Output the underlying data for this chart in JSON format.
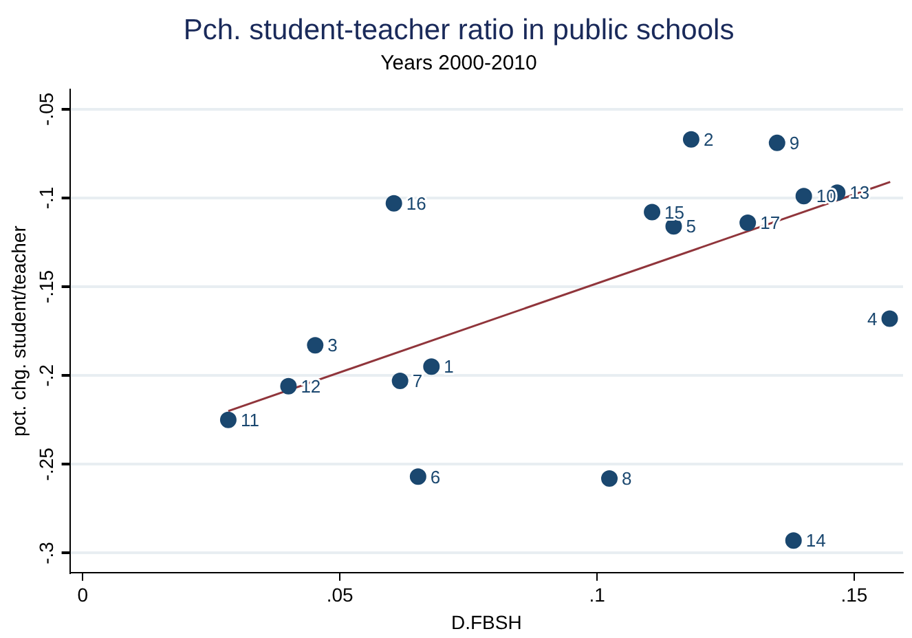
{
  "chart_data": {
    "type": "scatter",
    "title": "Pch. student-teacher ratio in public schools",
    "subtitle": "Years 2000-2010",
    "xlabel": "D.FBSH",
    "ylabel": "pct. chg. student/teacher",
    "xlim": [
      -0.0025,
      0.1595
    ],
    "xticks": [
      0,
      {
        "value": 0.05,
        "label": ".05"
      },
      {
        "value": 0.1,
        "label": ".1"
      },
      {
        "value": 0.15,
        "label": ".15"
      }
    ],
    "ylim": [
      -0.311,
      -0.039
    ],
    "yticks": [
      {
        "value": -0.3,
        "label": "-.3"
      },
      {
        "value": -0.25,
        "label": "-.25"
      },
      {
        "value": -0.2,
        "label": "-.2"
      },
      {
        "value": -0.15,
        "label": "-.15"
      },
      {
        "value": -0.1,
        "label": "-.1"
      },
      {
        "value": -0.05,
        "label": "-.05"
      }
    ],
    "grid": "y",
    "legend": false,
    "marker": "circle",
    "series": [
      {
        "color": "#1a476f",
        "x": [
          0.0678,
          0.1183,
          0.0452,
          0.1569,
          0.1149,
          0.0652,
          0.0617,
          0.1024,
          0.135,
          0.1402,
          0.0283,
          0.04,
          0.1467,
          0.1382,
          0.1107,
          0.0605,
          0.1293
        ],
        "values": [
          -0.195,
          -0.067,
          -0.183,
          -0.168,
          -0.116,
          -0.257,
          -0.203,
          -0.258,
          -0.069,
          -0.099,
          -0.225,
          -0.206,
          -0.097,
          -0.293,
          -0.108,
          -0.103,
          -0.114
        ]
      },
      {
        "type": "line",
        "color": "#90353b",
        "x": [
          0.0283,
          0.157
        ],
        "values": [
          -0.22,
          -0.091
        ],
        "marker": "none"
      }
    ],
    "annotations": [
      {
        "text": "1",
        "x": 0.0678,
        "y": -0.195
      },
      {
        "text": "2",
        "x": 0.1183,
        "y": -0.067
      },
      {
        "text": "3",
        "x": 0.0452,
        "y": -0.183
      },
      {
        "text": "4",
        "x": 0.1569,
        "y": -0.168
      },
      {
        "text": "5",
        "x": 0.1149,
        "y": -0.116
      },
      {
        "text": "6",
        "x": 0.0652,
        "y": -0.257
      },
      {
        "text": "7",
        "x": 0.0617,
        "y": -0.203
      },
      {
        "text": "8",
        "x": 0.1024,
        "y": -0.258
      },
      {
        "text": "9",
        "x": 0.135,
        "y": -0.069
      },
      {
        "text": "10",
        "x": 0.1402,
        "y": -0.099
      },
      {
        "text": "11",
        "x": 0.0283,
        "y": -0.225
      },
      {
        "text": "12",
        "x": 0.04,
        "y": -0.206
      },
      {
        "text": "13",
        "x": 0.1467,
        "y": -0.097
      },
      {
        "text": "14",
        "x": 0.1382,
        "y": -0.293
      },
      {
        "text": "15",
        "x": 0.1107,
        "y": -0.108
      },
      {
        "text": "16",
        "x": 0.0605,
        "y": -0.103
      },
      {
        "text": "17",
        "x": 0.1293,
        "y": -0.114
      }
    ]
  }
}
